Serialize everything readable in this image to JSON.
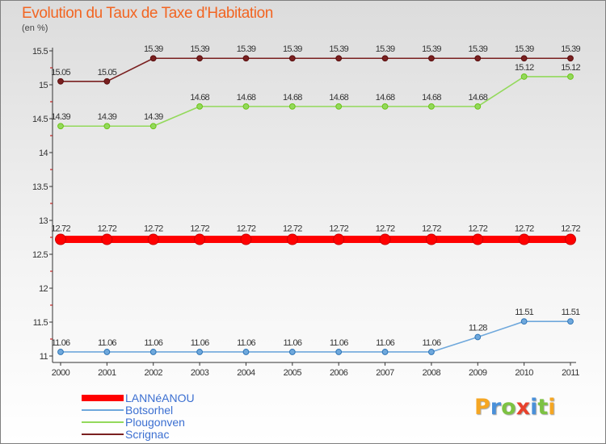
{
  "title": "Evolution du Taux de Taxe d'Habitation",
  "unit": "(en %)",
  "brand": {
    "text": "Proxiti",
    "letter_colors": [
      "#f5a623",
      "#4a90d9",
      "#7dc242",
      "#e8412c",
      "#4a90d9",
      "#7dc242",
      "#f5a623"
    ]
  },
  "chart_data": {
    "type": "line",
    "x": [
      "2000",
      "2001",
      "2002",
      "2003",
      "2004",
      "2005",
      "2006",
      "2007",
      "2008",
      "2009",
      "2010",
      "2011"
    ],
    "ylim": [
      11,
      15.5
    ],
    "yticks": [
      "11",
      "11.5",
      "12",
      "12.5",
      "13",
      "13.5",
      "14",
      "14.5",
      "15",
      "15.5"
    ],
    "grid": false,
    "legend_position": "bottom-left",
    "series": [
      {
        "name": "LANNéANOU",
        "color": "#ff0000",
        "emphasis": true,
        "values": [
          12.72,
          12.72,
          12.72,
          12.72,
          12.72,
          12.72,
          12.72,
          12.72,
          12.72,
          12.72,
          12.72,
          12.72
        ],
        "labels": [
          "12.72",
          "12.72",
          "12.72",
          "12.72",
          "12.72",
          "12.72",
          "12.72",
          "12.72",
          "12.72",
          "12.72",
          "12.72",
          "12.72"
        ]
      },
      {
        "name": "Botsorhel",
        "color": "#6fa8dc",
        "marker": "#2e75b6",
        "values": [
          11.06,
          11.06,
          11.06,
          11.06,
          11.06,
          11.06,
          11.06,
          11.06,
          11.06,
          11.28,
          11.51,
          11.51
        ],
        "labels": [
          "11.06",
          "11.06",
          "11.06",
          "11.06",
          "11.06",
          "11.06",
          "11.06",
          "11.06",
          "11.06",
          "11.28",
          "11.51",
          "11.51"
        ]
      },
      {
        "name": "Plougonven",
        "color": "#93d95b",
        "marker": "#6cc417",
        "values": [
          14.39,
          14.39,
          14.39,
          14.68,
          14.68,
          14.68,
          14.68,
          14.68,
          14.68,
          14.68,
          15.12,
          15.12
        ],
        "labels": [
          "14.39",
          "14.39",
          "14.39",
          "14.68",
          "14.68",
          "14.68",
          "14.68",
          "14.68",
          "14.68",
          "14.68",
          "15.12",
          "15.12"
        ]
      },
      {
        "name": "Scrignac",
        "color": "#7a2020",
        "marker": "#5a0f0f",
        "values": [
          15.05,
          15.05,
          15.39,
          15.39,
          15.39,
          15.39,
          15.39,
          15.39,
          15.39,
          15.39,
          15.39,
          15.39
        ],
        "labels": [
          "15.05",
          "15.05",
          "15.39",
          "15.39",
          "15.39",
          "15.39",
          "15.39",
          "15.39",
          "15.39",
          "15.39",
          "15.39",
          "15.39"
        ]
      }
    ]
  }
}
